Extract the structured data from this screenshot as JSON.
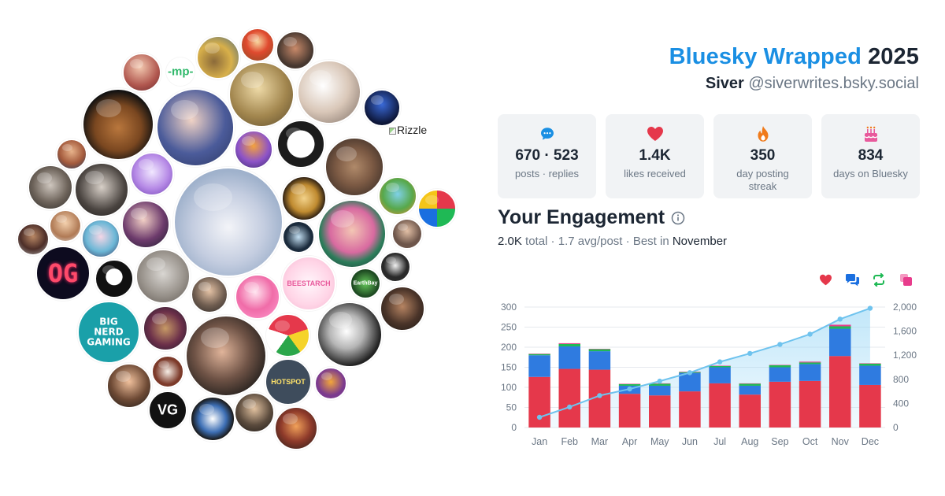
{
  "header": {
    "brand": "Bluesky Wrapped",
    "year": "2025",
    "display_name": "Siver",
    "handle": "@siverwrites.bsky.social"
  },
  "stats": [
    {
      "icon": "chat-bubble-icon",
      "value": "670 · 523",
      "label": "posts · replies",
      "color": "#1a8fe3"
    },
    {
      "icon": "heart-icon",
      "value": "1.4K",
      "label": "likes received",
      "color": "#e5384b"
    },
    {
      "icon": "flame-icon",
      "value": "350",
      "label": "day posting streak",
      "color": "#f07a1a"
    },
    {
      "icon": "cake-icon",
      "value": "834",
      "label": "days on Bluesky",
      "color": "#e85a9c"
    }
  ],
  "engagement": {
    "title": "Your Engagement",
    "total": "2.0K",
    "total_label": "total",
    "avg": "1.7 avg/post",
    "best_prefix": "Best in",
    "best_month": "November",
    "legend": [
      {
        "icon": "heart-icon",
        "color": "#e5384b"
      },
      {
        "icon": "reply-icon",
        "color": "#1a6fe0"
      },
      {
        "icon": "repost-icon",
        "color": "#1fb955"
      },
      {
        "icon": "quote-icon",
        "color": "#e83c8c"
      }
    ]
  },
  "avatar_cloud": {
    "badges": {
      "mp": "-mp-",
      "og": "OG",
      "big_nerd": "BIG NERD GAMING",
      "vg": "VG",
      "hotspot": "HOTSPOT",
      "beestarch": "BEESTARCH",
      "earthmuse": "EarthBay"
    },
    "broken_image_label": "Rizzle"
  },
  "chart_data": {
    "type": "bar",
    "categories": [
      "Jan",
      "Feb",
      "Mar",
      "Apr",
      "May",
      "Jun",
      "Jul",
      "Aug",
      "Sep",
      "Oct",
      "Nov",
      "Dec"
    ],
    "series": [
      {
        "values": [
          126,
          146,
          144,
          84,
          80,
          90,
          110,
          82,
          114,
          116,
          178,
          106
        ],
        "color": "#e5384b"
      },
      {
        "values": [
          54,
          56,
          46,
          20,
          24,
          46,
          40,
          22,
          36,
          42,
          68,
          48
        ],
        "color": "#2f7be0"
      },
      {
        "values": [
          3,
          6,
          5,
          4,
          5,
          2,
          3,
          5,
          5,
          4,
          6,
          5
        ],
        "color": "#1fb955"
      },
      {
        "values": [
          1,
          2,
          1,
          1,
          1,
          1,
          1,
          1,
          1,
          2,
          4,
          1
        ],
        "color": "#e83c8c"
      },
      {
        "type": "area",
        "axis": "right",
        "values": [
          170,
          340,
          530,
          640,
          770,
          910,
          1090,
          1230,
          1380,
          1550,
          1800,
          1980
        ],
        "color": "#6fc3ee"
      }
    ],
    "yticks_left": [
      "0",
      "50",
      "100",
      "150",
      "200",
      "250",
      "300"
    ],
    "yticks_right": [
      "0",
      "400",
      "800",
      "1,200",
      "1,600",
      "2,000"
    ],
    "ylim": [
      0,
      300
    ],
    "ylim_right": [
      0,
      2000
    ],
    "grid": true
  }
}
